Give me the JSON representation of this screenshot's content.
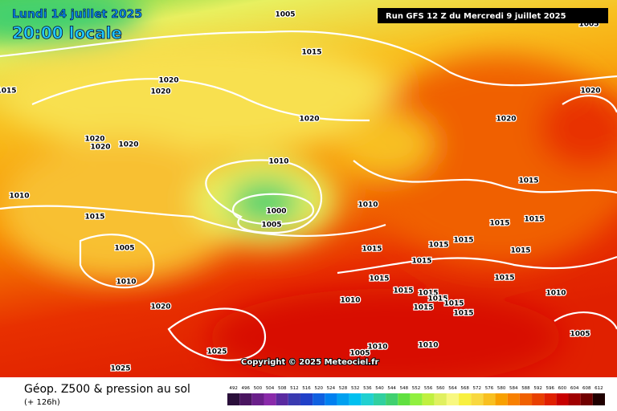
{
  "header": {
    "date": "Lundi 14 juillet 2025",
    "time": "20:00 locale",
    "run": "Run GFS 12 Z du Mercredi 9 juillet 2025"
  },
  "copyright": "Copyright © 2025 Meteociel.fr",
  "legend": {
    "title": "Géop. Z500 & pression au sol",
    "lead": "(+ 126h)",
    "scale": [
      {
        "value": 492,
        "color": "#2a0f3a"
      },
      {
        "value": 496,
        "color": "#4a1560"
      },
      {
        "value": 500,
        "color": "#6a1f8a"
      },
      {
        "value": 504,
        "color": "#8a2aaa"
      },
      {
        "value": 508,
        "color": "#5a2aa0"
      },
      {
        "value": 512,
        "color": "#3a3ab0"
      },
      {
        "value": 516,
        "color": "#2040c8"
      },
      {
        "value": 520,
        "color": "#1060e0"
      },
      {
        "value": 524,
        "color": "#0080f0"
      },
      {
        "value": 528,
        "color": "#00a0f0"
      },
      {
        "value": 532,
        "color": "#00c0f0"
      },
      {
        "value": 536,
        "color": "#20d0d0"
      },
      {
        "value": 540,
        "color": "#30d0a0"
      },
      {
        "value": 544,
        "color": "#40d070"
      },
      {
        "value": 548,
        "color": "#60e040"
      },
      {
        "value": 552,
        "color": "#90f040"
      },
      {
        "value": 556,
        "color": "#c0f040"
      },
      {
        "value": 560,
        "color": "#e0f060"
      },
      {
        "value": 564,
        "color": "#f8f880"
      },
      {
        "value": 568,
        "color": "#f8f040"
      },
      {
        "value": 572,
        "color": "#f8d840"
      },
      {
        "value": 576,
        "color": "#f8c020"
      },
      {
        "value": 580,
        "color": "#f8a000"
      },
      {
        "value": 584,
        "color": "#f88000"
      },
      {
        "value": 588,
        "color": "#f06000"
      },
      {
        "value": 592,
        "color": "#e84000"
      },
      {
        "value": 596,
        "color": "#e02000"
      },
      {
        "value": 600,
        "color": "#c80000"
      },
      {
        "value": 604,
        "color": "#a00000"
      },
      {
        "value": 608,
        "color": "#700000"
      },
      {
        "value": 612,
        "color": "#200000"
      }
    ]
  },
  "isobar_labels": [
    "1005",
    "1005",
    "1015",
    "1015",
    "1020",
    "1020",
    "1020",
    "1020",
    "1020",
    "1020",
    "1020",
    "1020",
    "1010",
    "1010",
    "1010",
    "1015",
    "1015",
    "1000",
    "1005",
    "1015",
    "1015",
    "1005",
    "1015",
    "1015",
    "1015",
    "1015",
    "1010",
    "1015",
    "1015",
    "1015",
    "1015",
    "1015",
    "1010",
    "1015",
    "1015",
    "1015",
    "1015",
    "1010",
    "1020",
    "1005",
    "1025",
    "1010",
    "1010",
    "1005",
    "1025"
  ]
}
